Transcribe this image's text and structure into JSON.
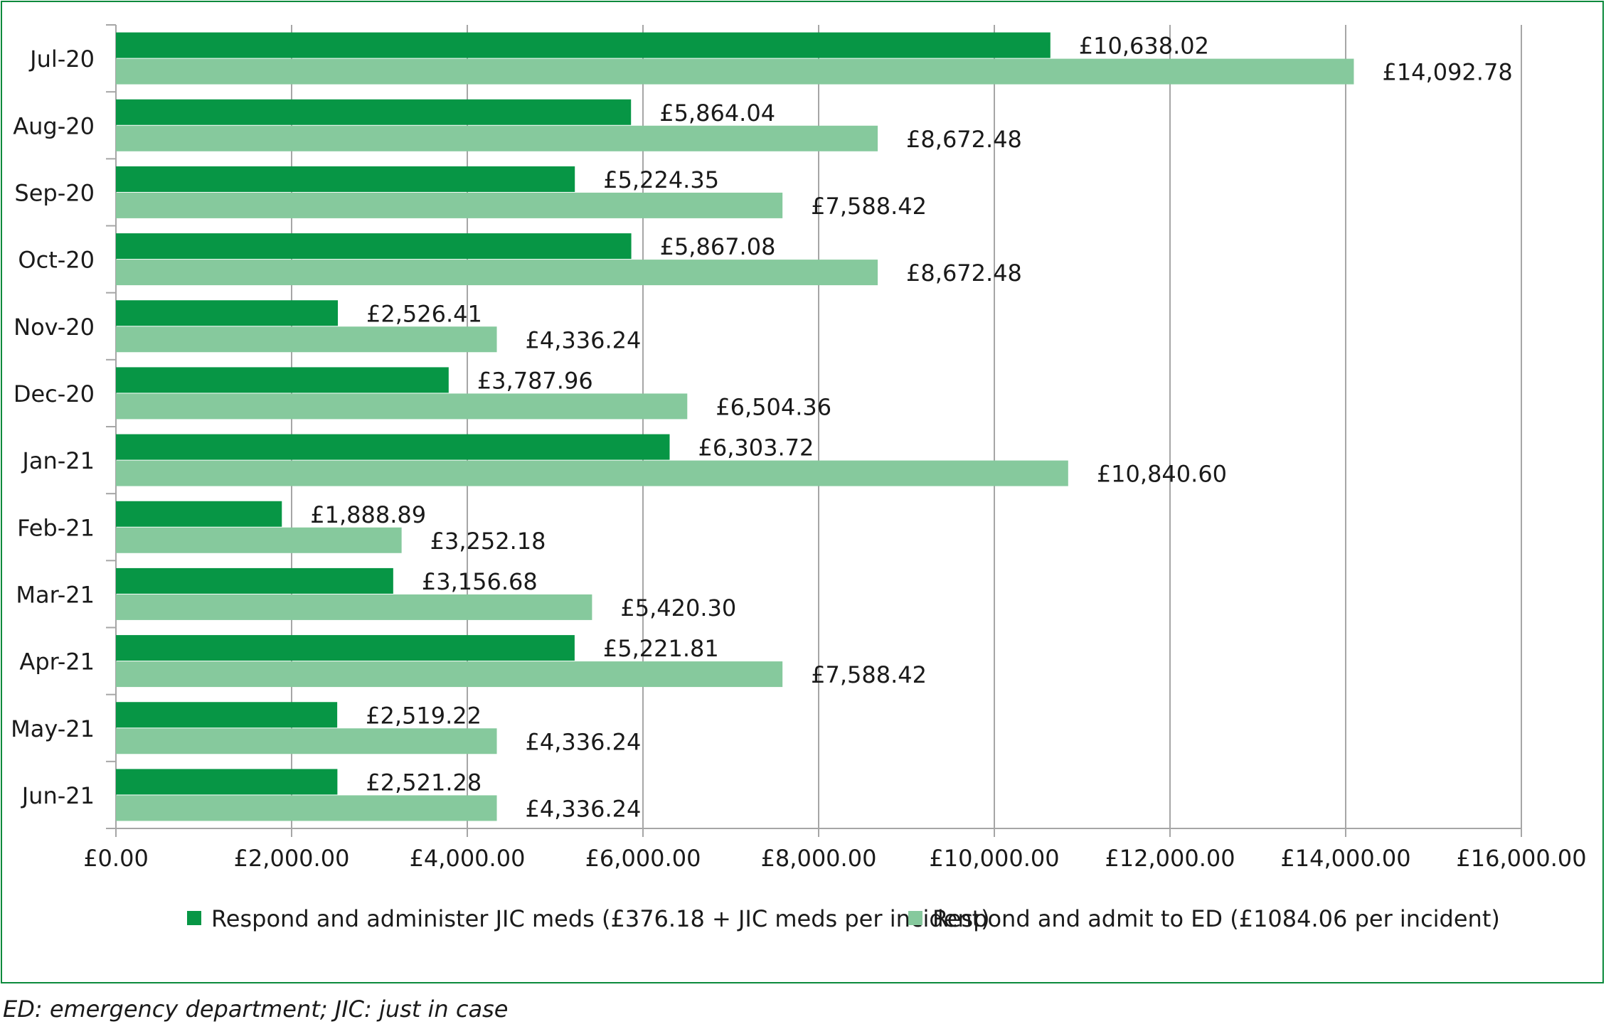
{
  "chart_data": {
    "type": "bar",
    "orientation": "horizontal",
    "categories": [
      "Jul-20",
      "Aug-20",
      "Sep-20",
      "Oct-20",
      "Nov-20",
      "Dec-20",
      "Jan-21",
      "Feb-21",
      "Mar-21",
      "Apr-21",
      "May-21",
      "Jun-21"
    ],
    "series": [
      {
        "name": "Respond and administer JIC meds (£376.18 + JIC meds per incident)",
        "color": "#079645",
        "values": [
          10638.02,
          5864.04,
          5224.35,
          5867.08,
          2526.41,
          3787.96,
          6303.72,
          1888.89,
          3156.68,
          5221.81,
          2519.22,
          2521.28
        ],
        "labels": [
          "£10,638.02",
          "£5,864.04",
          "£5,224.35",
          "£5,867.08",
          "£2,526.41",
          "£3,787.96",
          "£6,303.72",
          "£1,888.89",
          "£3,156.68",
          "£5,221.81",
          "£2,519.22",
          "£2,521.28"
        ]
      },
      {
        "name": "Respond and admit to ED (£1084.06 per incident)",
        "color": "#86c99d",
        "values": [
          14092.78,
          8672.48,
          7588.42,
          8672.48,
          4336.24,
          6504.36,
          10840.6,
          3252.18,
          5420.3,
          7588.42,
          4336.24,
          4336.24
        ],
        "labels": [
          "£14,092.78",
          "£8,672.48",
          "£7,588.42",
          "£8,672.48",
          "£4,336.24",
          "£6,504.36",
          "£10,840.60",
          "£3,252.18",
          "£5,420.30",
          "£7,588.42",
          "£4,336.24",
          "£4,336.24"
        ]
      }
    ],
    "xlim": [
      0,
      16000
    ],
    "xticks": [
      0,
      2000,
      4000,
      6000,
      8000,
      10000,
      12000,
      14000,
      16000
    ],
    "xtick_labels": [
      "£0.00",
      "£2,000.00",
      "£4,000.00",
      "£6,000.00",
      "£8,000.00",
      "£10,000.00",
      "£12,000.00",
      "£14,000.00",
      "£16,000.00"
    ],
    "title": "",
    "xlabel": "",
    "ylabel": "",
    "grid": "vertical",
    "legend": "bottom",
    "border_color": "#0b8a3c",
    "axis_color": "#a6a6a6"
  },
  "footnote": "ED: emergency department; JIC: just in case"
}
